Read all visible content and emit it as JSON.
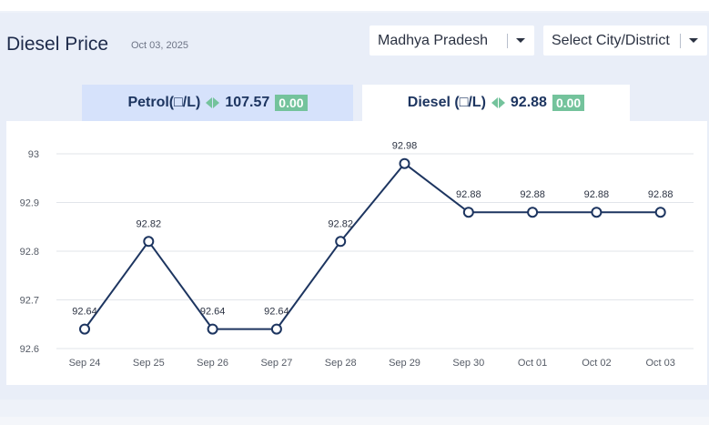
{
  "header": {
    "title": "Diesel Price",
    "date": "Oct 03, 2025"
  },
  "filters": {
    "state": "Madhya Pradesh",
    "city": "Select City/District"
  },
  "tabs": [
    {
      "label": "Petrol(□/L)",
      "price": "107.57",
      "change": "0.00",
      "active": false
    },
    {
      "label": "Diesel (□/L)",
      "price": "92.88",
      "change": "0.00",
      "active": true
    }
  ],
  "colors": {
    "line": "#1d3560",
    "change_badge": "#74c39c",
    "active_tab": "#ffffff",
    "inactive_tab": "#d6e2fb"
  },
  "chart_data": {
    "type": "line",
    "title": "",
    "xlabel": "",
    "ylabel": "",
    "categories": [
      "Sep 24",
      "Sep 25",
      "Sep 26",
      "Sep 27",
      "Sep 28",
      "Sep 29",
      "Sep 30",
      "Oct 01",
      "Oct 02",
      "Oct 03"
    ],
    "values": [
      92.64,
      92.82,
      92.64,
      92.64,
      92.82,
      92.98,
      92.88,
      92.88,
      92.88,
      92.88
    ],
    "data_labels": [
      "92.64",
      "92.82",
      "92.64",
      "92.64",
      "92.82",
      "92.98",
      "92.88",
      "92.88",
      "92.88",
      "92.88"
    ],
    "ylim": [
      92.6,
      93.0
    ],
    "yticks": [
      "92.6",
      "92.7",
      "92.8",
      "92.9",
      "93"
    ],
    "grid": true,
    "legend": "none"
  }
}
